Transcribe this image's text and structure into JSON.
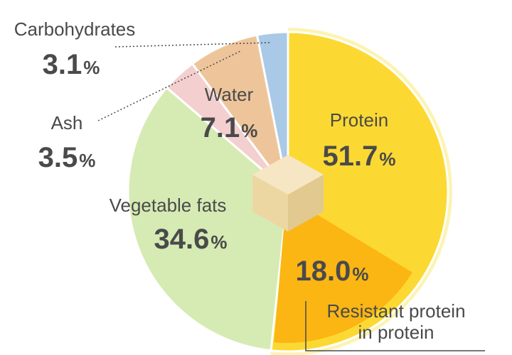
{
  "chart_data": {
    "type": "pie",
    "title": "",
    "slices": [
      {
        "name": "Protein",
        "value": 51.7,
        "label": "51.7",
        "color": "#fcd932"
      },
      {
        "name": "Vegetable fats",
        "value": 34.6,
        "label": "34.6",
        "color": "#d6ebb4"
      },
      {
        "name": "Ash",
        "value": 3.5,
        "label": "3.5",
        "color": "#f4cfcf"
      },
      {
        "name": "Water",
        "value": 7.1,
        "label": "7.1",
        "color": "#eec59b"
      },
      {
        "name": "Carbohydrates",
        "value": 3.1,
        "label": "3.1",
        "color": "#a9c9e6"
      }
    ],
    "sub_slice": {
      "parent": "Protein",
      "name": "Resistant protein in protein",
      "name_lines": [
        "Resistant protein",
        "in protein"
      ],
      "value": 18.0,
      "label": "18.0",
      "color": "#fbb614"
    },
    "percent_symbol": "%",
    "highlight_ring_color": "#fdf3b3",
    "center_icon": "cube-icon"
  }
}
